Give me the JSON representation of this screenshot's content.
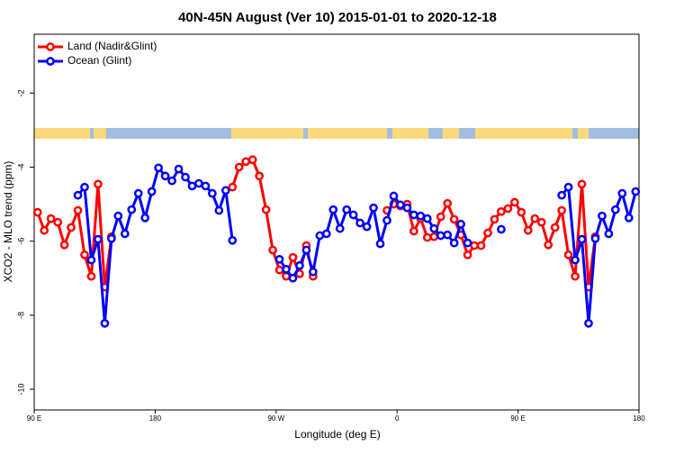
{
  "chart_data": {
    "type": "line",
    "title": "40N-45N August (Ver 10)   2015-01-01 to 2020-12-18",
    "x_label": "Longitude (deg E)",
    "y_label": "XCO2 - MLO trend (ppm)",
    "xlim": [
      90,
      540
    ],
    "ylim": [
      -10.56,
      -0.41
    ],
    "xticks": [
      {
        "value": 90,
        "label": "90 E"
      },
      {
        "value": 180,
        "label": "180"
      },
      {
        "value": 270,
        "label": "90 W"
      },
      {
        "value": 360,
        "label": "0"
      },
      {
        "value": 450,
        "label": "90 E"
      },
      {
        "value": 540,
        "label": "180"
      }
    ],
    "yticks": [
      -2,
      -4,
      -6,
      -8,
      -10
    ],
    "legend": "top-left",
    "x": [
      92.5,
      97.5,
      102.5,
      107.5,
      112.5,
      117.5,
      122.5,
      127.5,
      132.5,
      137.5,
      142.5,
      147.5,
      152.5,
      157.5,
      162.5,
      167.5,
      172.5,
      177.5,
      182.5,
      187.5,
      192.5,
      197.5,
      202.5,
      207.5,
      212.5,
      217.5,
      222.5,
      227.5,
      232.5,
      237.5,
      242.5,
      247.5,
      252.5,
      257.5,
      262.5,
      267.5,
      272.5,
      277.5,
      282.5,
      287.5,
      292.5,
      297.5,
      302.5,
      307.5,
      312.5,
      317.5,
      322.5,
      327.5,
      332.5,
      337.5,
      342.5,
      347.5,
      352.5,
      357.5,
      362.5,
      367.5,
      372.5,
      377.5,
      382.5,
      387.5,
      392.5,
      397.5,
      402.5,
      407.5,
      412.5,
      417.5,
      422.5,
      427.5,
      432.5,
      437.5,
      442.5,
      447.5,
      452.5,
      457.5,
      462.5,
      467.5,
      472.5,
      477.5,
      482.5,
      487.5,
      492.5,
      497.5,
      502.5,
      507.5,
      512.5,
      517.5,
      522.5,
      527.5,
      532.5,
      537.5
    ],
    "series": [
      {
        "name": "Land (Nadir&Glint)",
        "color": "#ff0000",
        "values": [
          -5.22,
          -5.71,
          -5.39,
          -5.49,
          -6.1,
          -5.63,
          -5.17,
          -6.37,
          -6.95,
          -4.46,
          -7.24,
          -5.88,
          null,
          null,
          null,
          null,
          null,
          null,
          null,
          null,
          null,
          null,
          null,
          null,
          null,
          null,
          null,
          null,
          null,
          -4.54,
          -4.0,
          -3.85,
          -3.8,
          -4.24,
          -5.15,
          -6.24,
          -6.78,
          -6.95,
          -6.44,
          -6.88,
          -6.12,
          -6.95,
          null,
          null,
          null,
          null,
          null,
          null,
          null,
          null,
          null,
          null,
          -5.17,
          -5.0,
          -5.05,
          -5.0,
          -5.73,
          -5.39,
          -5.9,
          -5.88,
          -5.34,
          -4.98,
          -5.41,
          -5.83,
          -6.37,
          -6.12,
          -6.12,
          -5.78,
          -5.41,
          -5.2,
          -5.12,
          -4.95,
          -5.22,
          -5.71,
          -5.39,
          -5.49,
          -6.1,
          -5.63,
          -5.17,
          -6.37,
          -6.95,
          -4.46,
          -7.24,
          -5.88,
          null,
          null,
          null,
          null,
          null,
          null
        ]
      },
      {
        "name": "Ocean (Glint)",
        "color": "#0000ff",
        "values": [
          null,
          null,
          null,
          null,
          null,
          null,
          -4.76,
          -4.54,
          -6.51,
          -5.95,
          -8.22,
          -5.93,
          -5.32,
          -5.8,
          -5.15,
          -4.71,
          -5.37,
          -4.66,
          -4.02,
          -4.24,
          -4.37,
          -4.05,
          -4.27,
          -4.51,
          -4.44,
          -4.51,
          -4.71,
          -5.17,
          -4.63,
          -5.98,
          null,
          null,
          null,
          null,
          null,
          null,
          -6.49,
          -6.76,
          -7.0,
          -6.66,
          -6.24,
          -6.83,
          -5.85,
          -5.8,
          -5.15,
          -5.66,
          -5.15,
          -5.29,
          -5.51,
          -5.61,
          -5.1,
          -6.07,
          -5.44,
          -4.78,
          -5.02,
          -5.1,
          -5.29,
          -5.32,
          -5.39,
          -5.66,
          -5.85,
          -5.83,
          -6.05,
          -5.54,
          -6.05,
          null,
          null,
          null,
          null,
          -5.68,
          null,
          null,
          null,
          null,
          null,
          null,
          null,
          null,
          -4.76,
          -4.54,
          -6.51,
          -5.95,
          -8.22,
          -5.93,
          -5.32,
          -5.8,
          -5.15,
          -4.71,
          -5.37,
          -4.66
        ]
      }
    ]
  }
}
